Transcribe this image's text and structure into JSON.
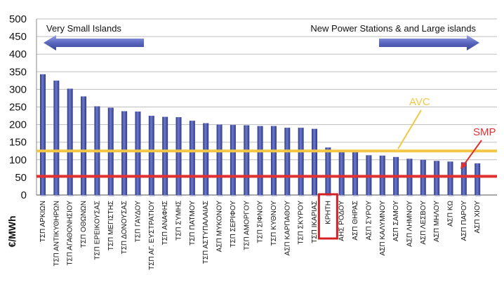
{
  "chart_data": {
    "type": "bar",
    "title": "",
    "xlabel": "",
    "ylabel": "€/MWh",
    "ylim": [
      0,
      500
    ],
    "yticks": [
      0,
      50,
      100,
      150,
      200,
      250,
      300,
      350,
      400,
      450,
      500
    ],
    "grid": true,
    "categories": [
      "ΤΣΠ ΑΡΚΙΩΝ",
      "ΤΣΠ ΑΝΤΙΚΥΘΗΡΩΝ",
      "ΤΣΠ ΑΓΑΘΟΝΗΣΙΟΥ",
      "ΤΣΠ ΟΘΩΝΩΝ",
      "ΤΣΠ ΕΡΕΙΚΟΥΣΑΣ",
      "ΤΣΠ ΜΕΓΙΣΤΗΣ",
      "ΤΣΠ ΔΟΝΟΥΣΑΣ",
      "ΤΣΠ ΓΑΥΔΟΥ",
      "ΤΣΠ ΑΓ. ΕΥΣΤΡΑΤΙΟΥ",
      "ΤΣΠ ΑΝΑΦΗΣ",
      "ΤΣΠ ΣΥΜΗΣ",
      "ΤΣΠ ΠΑΤΜΟΥ",
      "ΤΣΠ ΑΣΤΥΠΑΛΑΙΑΣ",
      "ΑΣΠ ΜΥΚΟΝΟΥ",
      "ΤΣΠ ΣΕΡΙΦΟΥ",
      "ΤΣΠ ΑΜΟΡΓΟΥ",
      "ΤΣΠ ΣΙΦΝΟΥ",
      "ΤΣΠ ΚΥΘΝΟΥ",
      "ΑΣΠ ΚΑΡΠΑΘΟΥ",
      "ΤΣΠ ΣΚΥΡΟΥ",
      "ΤΣΠ ΙΚΑΡΙΑΣ",
      "ΚΡΗΤΗ",
      "ΑΗΣ ΡΟΔΟΥ",
      "ΑΣΠ ΘΗΡΑΣ",
      "ΑΣΠ ΣΥΡΟΥ",
      "ΑΣΠ ΚΑΛΥΜΝΟΥ",
      "ΑΣΠ ΣΑΜΟΥ",
      "ΑΣΠ ΛΗΜΝΟΥ",
      "ΑΣΠ ΛΕΣΒΟΥ",
      "ΑΣΠ ΜΗΛΟΥ",
      "ΑΣΠ ΚΩ",
      "ΑΣΠ ΠΑΡΟΥ",
      "ΑΣΠ ΧΙΟΥ"
    ],
    "values": [
      343,
      325,
      302,
      280,
      252,
      248,
      238,
      237,
      225,
      222,
      221,
      211,
      204,
      200,
      199,
      198,
      196,
      196,
      191,
      191,
      188,
      135,
      122,
      122,
      113,
      112,
      108,
      103,
      100,
      97,
      95,
      93,
      90
    ],
    "highlight_category": "ΚΡΗΤΗ",
    "reference_lines": [
      {
        "name": "AVC",
        "value": 125,
        "color": "#f2c744"
      },
      {
        "name": "SMP",
        "value": 53,
        "color": "#e03030"
      }
    ],
    "annotations": {
      "left_text": "Very Small Islands",
      "right_text": "New Power Stations & and Large islands"
    },
    "colors": {
      "bar": "#5a66b8",
      "bar_dark": "#2f3a86",
      "arrow": "#6f7bd0",
      "highlight_box": "#d42020",
      "grid": "#bdbdbd"
    }
  }
}
